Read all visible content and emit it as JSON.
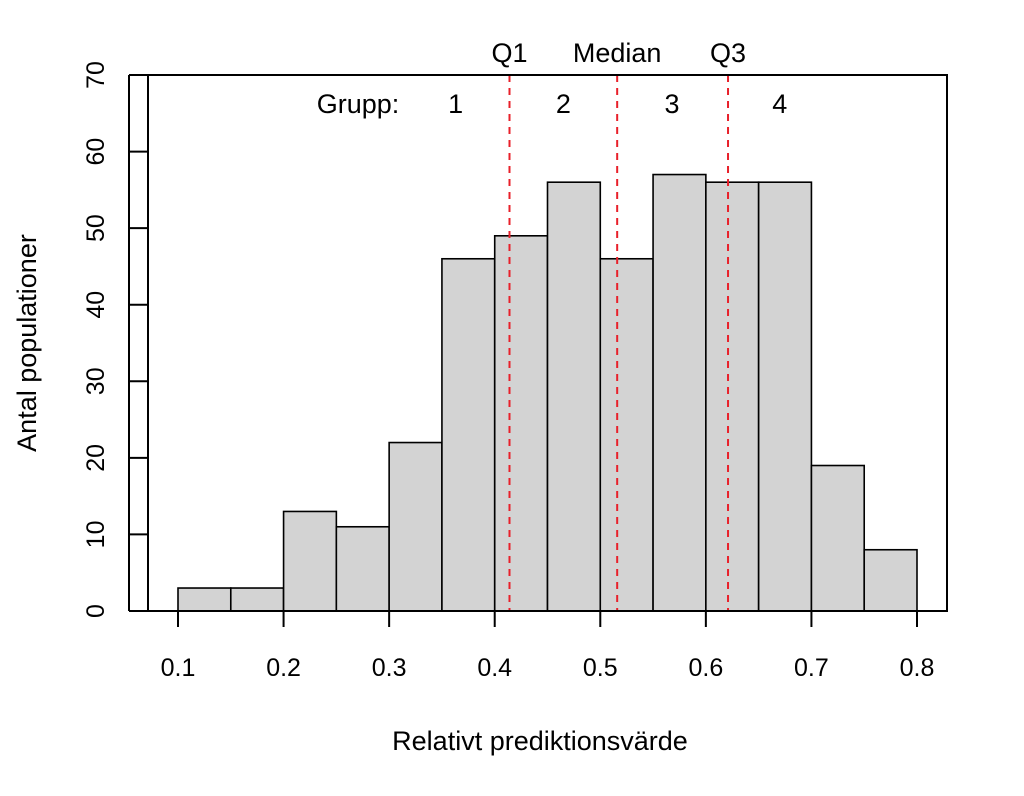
{
  "chart_data": {
    "type": "bar",
    "title": "",
    "xlabel": "Relativt prediktionsvärde",
    "ylabel": "Antal populationer",
    "bin_edges": [
      0.1,
      0.15,
      0.2,
      0.25,
      0.3,
      0.35,
      0.4,
      0.45,
      0.5,
      0.55,
      0.6,
      0.65,
      0.7,
      0.75,
      0.8
    ],
    "values": [
      3,
      3,
      13,
      11,
      22,
      46,
      49,
      56,
      46,
      57,
      56,
      56,
      19,
      8
    ],
    "xlim": [
      0.1,
      0.8
    ],
    "ylim": [
      0,
      70
    ],
    "x_ticks": [
      0.1,
      0.2,
      0.3,
      0.4,
      0.5,
      0.6,
      0.7,
      0.8
    ],
    "x_tick_labels": [
      "0.1",
      "0.2",
      "0.3",
      "0.4",
      "0.5",
      "0.6",
      "0.7",
      "0.8"
    ],
    "y_ticks": [
      0,
      10,
      20,
      30,
      40,
      50,
      60,
      70
    ],
    "y_tick_labels": [
      "0",
      "10",
      "20",
      "30",
      "40",
      "50",
      "60",
      "70"
    ],
    "grid": false,
    "bar_color": "#d3d3d3",
    "bar_edge_color": "#000000",
    "reference_lines": [
      {
        "label": "Q1",
        "x": 0.414,
        "color": "#e8202a",
        "style": "dashed"
      },
      {
        "label": "Median",
        "x": 0.516,
        "color": "#e8202a",
        "style": "dashed"
      },
      {
        "label": "Q3",
        "x": 0.621,
        "color": "#e8202a",
        "style": "dashed"
      }
    ],
    "group_prefix": "Grupp:",
    "groups": [
      {
        "label": "1",
        "x": 0.363
      },
      {
        "label": "2",
        "x": 0.465
      },
      {
        "label": "3",
        "x": 0.568
      },
      {
        "label": "4",
        "x": 0.67
      }
    ]
  }
}
